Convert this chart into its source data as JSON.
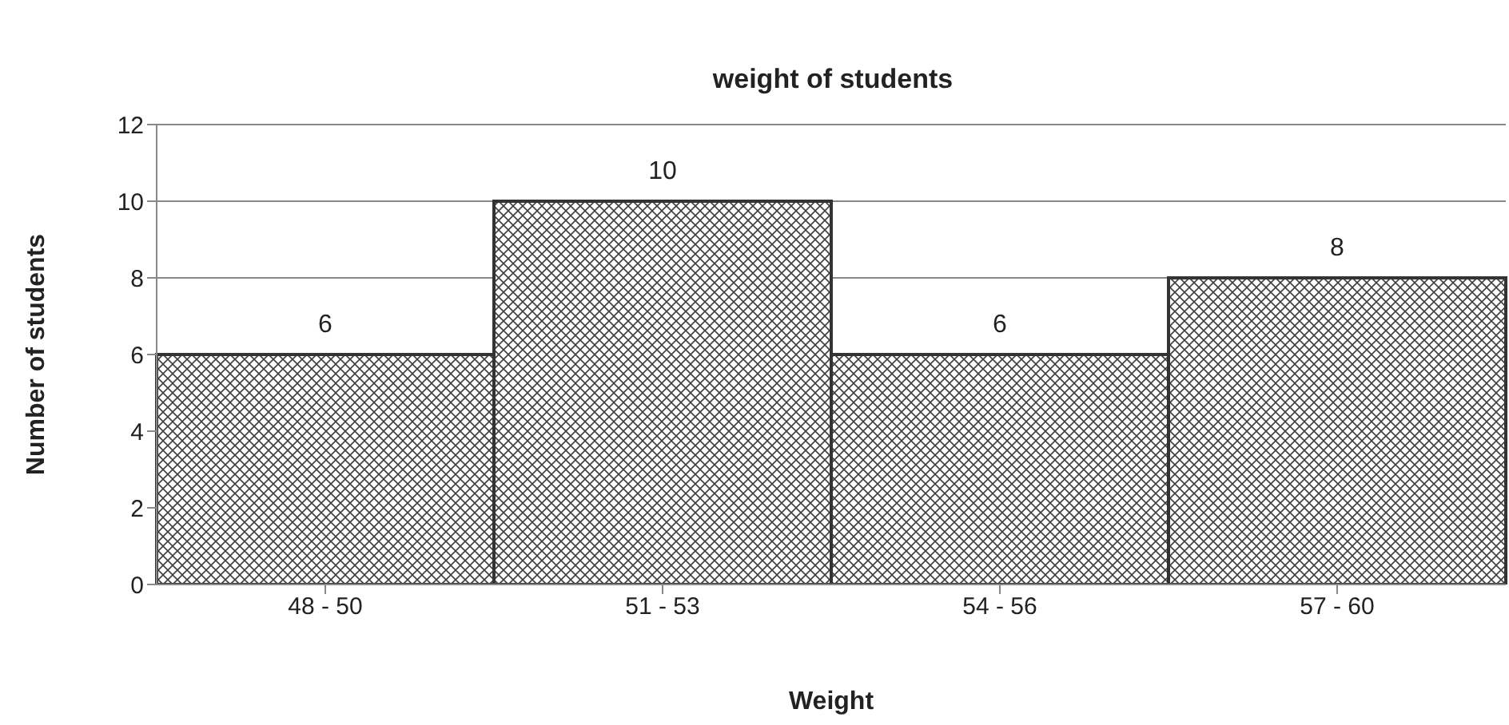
{
  "chart_data": {
    "type": "bar",
    "title": "weight of students",
    "xlabel": "Weight",
    "ylabel": "Number of students",
    "categories": [
      "48 - 50",
      "51 - 53",
      "54 - 56",
      "57 - 60"
    ],
    "values": [
      6,
      10,
      6,
      8
    ],
    "color": "#404040",
    "ylim": [
      0,
      12
    ],
    "yticks": [
      0,
      2,
      4,
      6,
      8,
      10,
      12
    ],
    "grid": "y",
    "data_labels": true
  }
}
